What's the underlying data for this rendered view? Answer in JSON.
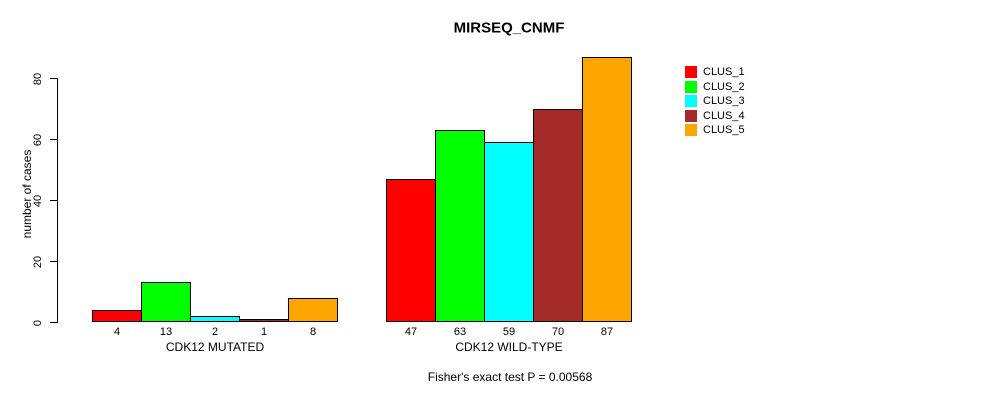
{
  "chart_data": {
    "type": "bar",
    "title": "MIRSEQ_CNMF",
    "ylabel": "number of cases",
    "xlabel": "",
    "caption": "Fisher's exact test P = 0.00568",
    "ylim": [
      0,
      87
    ],
    "yticks": [
      0,
      20,
      40,
      60,
      80
    ],
    "grid": false,
    "legend_position": "right",
    "show_value_labels": true,
    "categories": [
      "CDK12 MUTATED",
      "CDK12 WILD-TYPE"
    ],
    "series": [
      {
        "name": "CLUS_1",
        "color": "#FF0000",
        "values": [
          4,
          47
        ]
      },
      {
        "name": "CLUS_2",
        "color": "#00FF00",
        "values": [
          13,
          63
        ]
      },
      {
        "name": "CLUS_3",
        "color": "#00FFFF",
        "values": [
          2,
          59
        ]
      },
      {
        "name": "CLUS_4",
        "color": "#A52A2A",
        "values": [
          1,
          70
        ]
      },
      {
        "name": "CLUS_5",
        "color": "#FFA500",
        "values": [
          8,
          87
        ]
      }
    ],
    "axis_color": "#000000",
    "text_color": "#000000",
    "background_color": "#FFFFFF"
  }
}
